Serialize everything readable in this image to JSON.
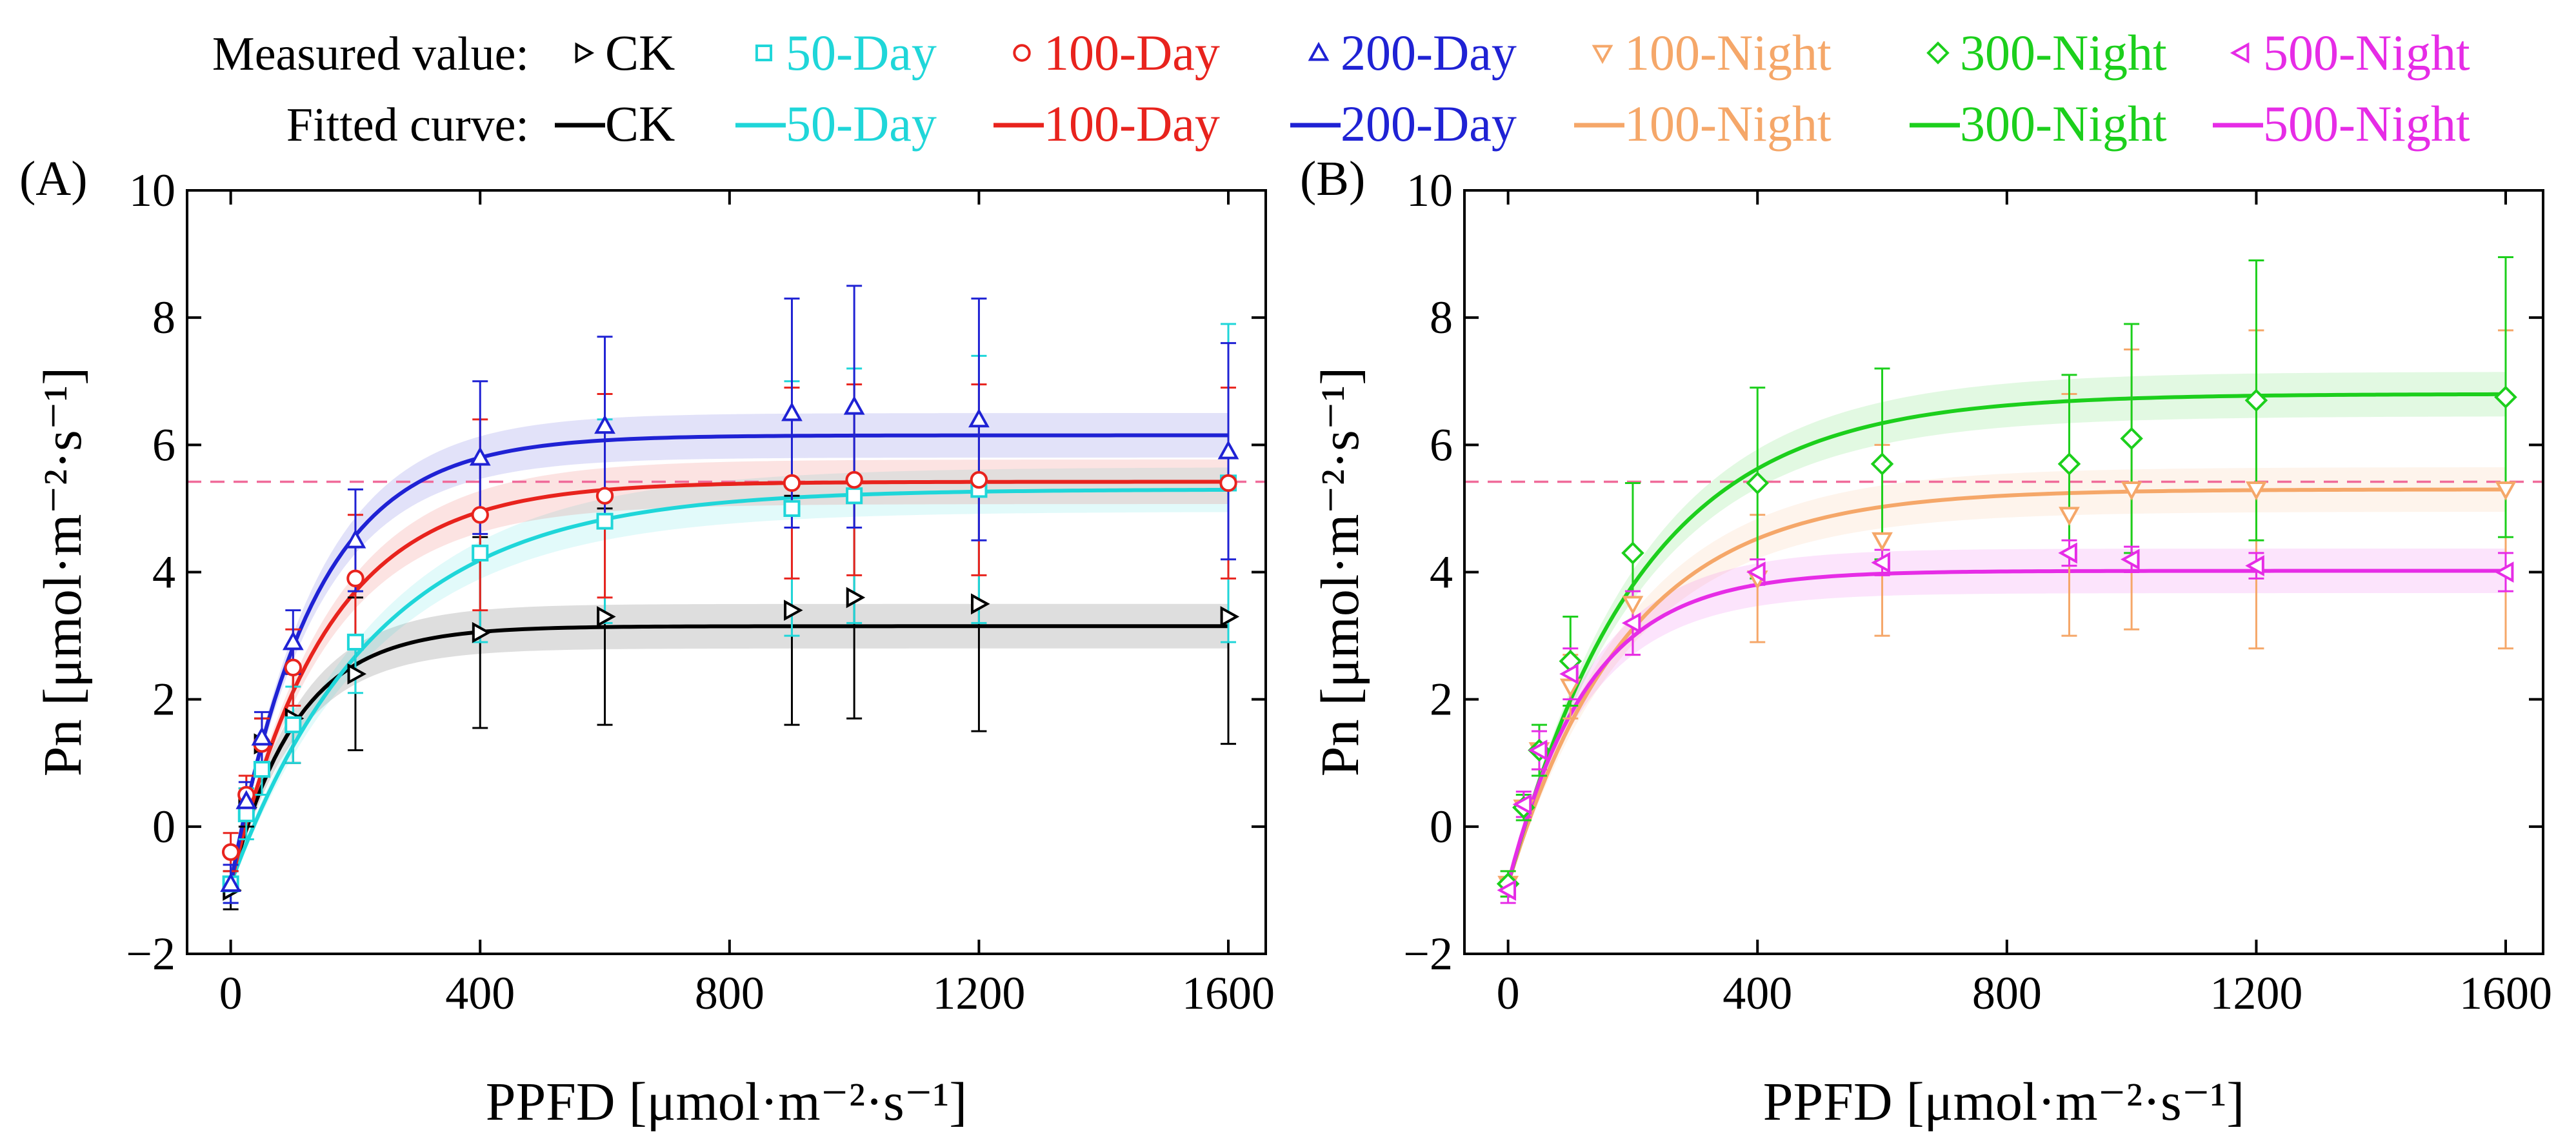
{
  "legend": {
    "measured_label": "Measured value:",
    "fitted_label": "Fitted curve:",
    "entries": [
      {
        "name": "CK",
        "color": "#000000",
        "marker": "triangle-right"
      },
      {
        "name": "50-Day",
        "color": "#1fd6d9",
        "marker": "square"
      },
      {
        "name": "100-Day",
        "color": "#e8231d",
        "marker": "circle"
      },
      {
        "name": "200-Day",
        "color": "#1f22d4",
        "marker": "triangle-up"
      },
      {
        "name": "100-Night",
        "color": "#f5a769",
        "marker": "triangle-down"
      },
      {
        "name": "300-Night",
        "color": "#1ccf1c",
        "marker": "diamond"
      },
      {
        "name": "500-Night",
        "color": "#e62ce6",
        "marker": "triangle-left"
      }
    ]
  },
  "chart_data": [
    {
      "type": "scatter",
      "panel_label": "(A)",
      "xlabel": "PPFD [μmol·m⁻²·s⁻¹]",
      "ylabel": "Pn [μmol·m⁻²·s⁻¹]",
      "xlim": [
        -70,
        1660
      ],
      "ylim": [
        -2,
        10
      ],
      "xticks": [
        0,
        400,
        800,
        1200,
        1600
      ],
      "yticks": [
        -2,
        0,
        2,
        4,
        6,
        8,
        10
      ],
      "reference_line": {
        "y": 5.42,
        "style": "dashed",
        "color": "#f06b9a"
      },
      "x": [
        0,
        25,
        50,
        100,
        200,
        400,
        600,
        900,
        1000,
        1200,
        1600
      ],
      "series": [
        {
          "name": "CK",
          "color": "#000000",
          "marker": "triangle-right",
          "values": [
            -1.0,
            0.3,
            1.3,
            1.7,
            2.4,
            3.05,
            3.3,
            3.4,
            3.6,
            3.5,
            3.3
          ],
          "errors": [
            0.3,
            0.3,
            0.4,
            0.7,
            1.2,
            1.5,
            1.7,
            1.8,
            1.9,
            2.0,
            2.0
          ],
          "fit": {
            "pmax": 3.15,
            "rd": -0.9,
            "k": 0.0095
          }
        },
        {
          "name": "50-Day",
          "color": "#1fd6d9",
          "marker": "square",
          "values": [
            -0.9,
            0.2,
            0.9,
            1.6,
            2.9,
            4.3,
            4.8,
            5.0,
            5.2,
            5.3,
            5.4
          ],
          "errors": [
            0.3,
            0.4,
            0.4,
            0.6,
            0.8,
            1.4,
            1.6,
            2.0,
            2.0,
            2.1,
            2.5
          ],
          "fit": {
            "pmax": 5.3,
            "rd": -0.9,
            "k": 0.0043
          }
        },
        {
          "name": "100-Day",
          "color": "#e8231d",
          "marker": "circle",
          "values": [
            -0.4,
            0.5,
            1.3,
            2.5,
            3.9,
            4.9,
            5.2,
            5.4,
            5.45,
            5.45,
            5.4
          ],
          "errors": [
            0.3,
            0.3,
            0.4,
            0.6,
            1.0,
            1.5,
            1.6,
            1.5,
            1.5,
            1.5,
            1.5
          ],
          "fit": {
            "pmax": 5.42,
            "rd": -0.9,
            "k": 0.0065
          }
        },
        {
          "name": "200-Day",
          "color": "#1f22d4",
          "marker": "triangle-up",
          "values": [
            -0.9,
            0.4,
            1.4,
            2.9,
            4.5,
            5.8,
            6.3,
            6.5,
            6.6,
            6.4,
            5.9
          ],
          "errors": [
            0.3,
            0.3,
            0.4,
            0.5,
            0.8,
            1.2,
            1.4,
            1.8,
            1.9,
            1.9,
            1.7
          ],
          "fit": {
            "pmax": 6.15,
            "rd": -0.9,
            "k": 0.0075
          }
        }
      ]
    },
    {
      "type": "scatter",
      "panel_label": "(B)",
      "xlabel": "PPFD [μmol·m⁻²·s⁻¹]",
      "ylabel": "Pn [μmol·m⁻²·s⁻¹]",
      "xlim": [
        -70,
        1660
      ],
      "ylim": [
        -2,
        10
      ],
      "xticks": [
        0,
        400,
        800,
        1200,
        1600
      ],
      "yticks": [
        -2,
        0,
        2,
        4,
        6,
        8,
        10
      ],
      "reference_line": {
        "y": 5.42,
        "style": "dashed",
        "color": "#f06b9a"
      },
      "x": [
        0,
        25,
        50,
        100,
        200,
        400,
        600,
        900,
        1000,
        1200,
        1600
      ],
      "series": [
        {
          "name": "100-Night",
          "color": "#f5a769",
          "marker": "triangle-down",
          "values": [
            -0.9,
            0.3,
            1.2,
            2.2,
            3.5,
            3.9,
            4.5,
            4.9,
            5.3,
            5.3,
            5.3
          ],
          "errors": [
            0.2,
            0.2,
            0.3,
            0.5,
            0.8,
            1.0,
            1.5,
            1.9,
            2.2,
            2.5,
            2.5
          ],
          "fit": {
            "pmax": 5.3,
            "rd": -0.9,
            "k": 0.0052
          }
        },
        {
          "name": "300-Night",
          "color": "#1ccf1c",
          "marker": "diamond",
          "values": [
            -0.9,
            0.3,
            1.2,
            2.6,
            4.3,
            5.4,
            5.7,
            5.7,
            6.1,
            6.7,
            6.75
          ],
          "errors": [
            0.2,
            0.2,
            0.4,
            0.7,
            1.1,
            1.5,
            1.5,
            1.4,
            1.8,
            2.2,
            2.2
          ],
          "fit": {
            "pmax": 6.8,
            "rd": -0.9,
            "k": 0.0047
          }
        },
        {
          "name": "500-Night",
          "color": "#e62ce6",
          "marker": "triangle-left",
          "values": [
            -1.0,
            0.35,
            1.2,
            2.4,
            3.2,
            4.0,
            4.15,
            4.3,
            4.2,
            4.1,
            4.0
          ],
          "errors": [
            0.2,
            0.2,
            0.3,
            0.4,
            0.5,
            0.2,
            0.2,
            0.2,
            0.2,
            0.2,
            0.3
          ],
          "fit": {
            "pmax": 4.02,
            "rd": -0.9,
            "k": 0.0078
          }
        }
      ]
    }
  ]
}
